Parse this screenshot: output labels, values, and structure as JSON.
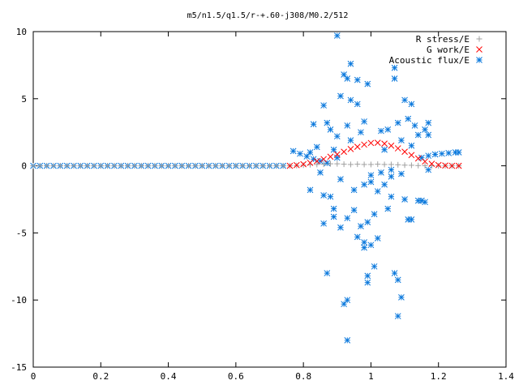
{
  "chart_data": {
    "type": "scatter",
    "title": "m5/n1.5/q1.5/r-+.60-j308/M0.2/512",
    "xlabel": "",
    "ylabel": "",
    "xlim": [
      0,
      1.4
    ],
    "ylim": [
      -15,
      10
    ],
    "x_ticks": [
      "0",
      "0.2",
      "0.4",
      "0.6",
      "0.8",
      "1",
      "1.2",
      "1.4"
    ],
    "y_ticks": [
      "-15",
      "-10",
      "-5",
      "0",
      "5",
      "10"
    ],
    "grid": false,
    "legend": "top-right",
    "series": [
      {
        "name": "R stress/E",
        "marker": "plus",
        "color": "#a0a0a0",
        "points": [
          [
            0.0,
            0
          ],
          [
            0.02,
            0
          ],
          [
            0.04,
            0
          ],
          [
            0.06,
            0
          ],
          [
            0.08,
            0
          ],
          [
            0.1,
            0
          ],
          [
            0.12,
            0
          ],
          [
            0.14,
            0
          ],
          [
            0.16,
            0
          ],
          [
            0.18,
            0
          ],
          [
            0.2,
            0
          ],
          [
            0.22,
            0
          ],
          [
            0.24,
            0
          ],
          [
            0.26,
            0
          ],
          [
            0.28,
            0
          ],
          [
            0.3,
            0
          ],
          [
            0.32,
            0
          ],
          [
            0.34,
            0
          ],
          [
            0.36,
            0
          ],
          [
            0.38,
            0
          ],
          [
            0.4,
            0
          ],
          [
            0.42,
            0
          ],
          [
            0.44,
            0
          ],
          [
            0.46,
            0
          ],
          [
            0.48,
            0
          ],
          [
            0.5,
            0
          ],
          [
            0.52,
            0
          ],
          [
            0.54,
            0
          ],
          [
            0.56,
            0
          ],
          [
            0.58,
            0
          ],
          [
            0.6,
            0
          ],
          [
            0.62,
            0
          ],
          [
            0.64,
            0
          ],
          [
            0.66,
            0
          ],
          [
            0.68,
            0
          ],
          [
            0.7,
            0
          ],
          [
            0.72,
            0
          ],
          [
            0.74,
            0
          ],
          [
            0.76,
            0
          ],
          [
            0.78,
            0.02
          ],
          [
            0.8,
            0.05
          ],
          [
            0.82,
            0.08
          ],
          [
            0.84,
            0.1
          ],
          [
            0.86,
            0.12
          ],
          [
            0.88,
            0.15
          ],
          [
            0.9,
            0.15
          ],
          [
            0.92,
            0.12
          ],
          [
            0.94,
            0.1
          ],
          [
            0.96,
            0.12
          ],
          [
            0.98,
            0.1
          ],
          [
            1.0,
            0.1
          ],
          [
            1.02,
            0.12
          ],
          [
            1.04,
            0.1
          ],
          [
            1.06,
            0.1
          ],
          [
            1.08,
            0.08
          ],
          [
            1.1,
            0.05
          ],
          [
            1.12,
            0.04
          ],
          [
            1.14,
            0.02
          ],
          [
            1.16,
            0.01
          ],
          [
            1.18,
            0
          ],
          [
            1.2,
            0
          ],
          [
            1.22,
            0
          ],
          [
            1.24,
            0
          ],
          [
            1.26,
            0
          ]
        ]
      },
      {
        "name": "G work/E",
        "marker": "cross",
        "color": "#ff0000",
        "points": [
          [
            0.76,
            0.0
          ],
          [
            0.78,
            0.05
          ],
          [
            0.8,
            0.12
          ],
          [
            0.82,
            0.22
          ],
          [
            0.84,
            0.35
          ],
          [
            0.86,
            0.5
          ],
          [
            0.88,
            0.68
          ],
          [
            0.9,
            0.85
          ],
          [
            0.92,
            1.05
          ],
          [
            0.94,
            1.25
          ],
          [
            0.96,
            1.42
          ],
          [
            0.98,
            1.58
          ],
          [
            1.0,
            1.7
          ],
          [
            1.02,
            1.72
          ],
          [
            1.04,
            1.65
          ],
          [
            1.06,
            1.5
          ],
          [
            1.08,
            1.3
          ],
          [
            1.1,
            1.05
          ],
          [
            1.12,
            0.8
          ],
          [
            1.14,
            0.55
          ],
          [
            1.16,
            0.32
          ],
          [
            1.18,
            0.15
          ],
          [
            1.2,
            0.06
          ],
          [
            1.22,
            0.02
          ],
          [
            1.24,
            0.0
          ],
          [
            1.26,
            0.0
          ]
        ]
      },
      {
        "name": "Acoustic flux/E",
        "marker": "star",
        "color": "#0a78dc",
        "points": [
          [
            0.0,
            0
          ],
          [
            0.02,
            0
          ],
          [
            0.04,
            0
          ],
          [
            0.06,
            0
          ],
          [
            0.08,
            0
          ],
          [
            0.1,
            0
          ],
          [
            0.12,
            0
          ],
          [
            0.14,
            0
          ],
          [
            0.16,
            0
          ],
          [
            0.18,
            0
          ],
          [
            0.2,
            0
          ],
          [
            0.22,
            0
          ],
          [
            0.24,
            0
          ],
          [
            0.26,
            0
          ],
          [
            0.28,
            0
          ],
          [
            0.3,
            0
          ],
          [
            0.32,
            0
          ],
          [
            0.34,
            0
          ],
          [
            0.36,
            0
          ],
          [
            0.38,
            0
          ],
          [
            0.4,
            0
          ],
          [
            0.42,
            0
          ],
          [
            0.44,
            0
          ],
          [
            0.46,
            0
          ],
          [
            0.48,
            0
          ],
          [
            0.5,
            0
          ],
          [
            0.52,
            0
          ],
          [
            0.54,
            0
          ],
          [
            0.56,
            0
          ],
          [
            0.58,
            0
          ],
          [
            0.6,
            0
          ],
          [
            0.62,
            0
          ],
          [
            0.64,
            0
          ],
          [
            0.66,
            0
          ],
          [
            0.68,
            0
          ],
          [
            0.7,
            0
          ],
          [
            0.72,
            0
          ],
          [
            0.74,
            0
          ],
          [
            0.77,
            1.1
          ],
          [
            0.79,
            0.9
          ],
          [
            0.81,
            0.7
          ],
          [
            0.83,
            0.5
          ],
          [
            0.85,
            0.35
          ],
          [
            0.87,
            0.2
          ],
          [
            1.15,
            0.6
          ],
          [
            1.17,
            0.75
          ],
          [
            1.19,
            0.85
          ],
          [
            1.21,
            0.9
          ],
          [
            1.23,
            0.95
          ],
          [
            1.25,
            1.0
          ],
          [
            1.26,
            1.0
          ],
          [
            0.82,
            -1.8
          ],
          [
            0.82,
            1.0
          ],
          [
            0.83,
            3.1
          ],
          [
            0.84,
            1.4
          ],
          [
            0.85,
            -0.5
          ],
          [
            0.86,
            4.5
          ],
          [
            0.86,
            -2.2
          ],
          [
            0.86,
            -4.3
          ],
          [
            0.87,
            -8.0
          ],
          [
            0.87,
            3.2
          ],
          [
            0.88,
            2.7
          ],
          [
            0.88,
            -2.3
          ],
          [
            0.89,
            -3.2
          ],
          [
            0.89,
            -3.8
          ],
          [
            0.89,
            1.2
          ],
          [
            0.9,
            9.7
          ],
          [
            0.9,
            2.2
          ],
          [
            0.9,
            0.6
          ],
          [
            0.91,
            -4.6
          ],
          [
            0.91,
            -1.0
          ],
          [
            0.91,
            5.2
          ],
          [
            0.92,
            -10.3
          ],
          [
            0.92,
            6.8
          ],
          [
            0.93,
            6.5
          ],
          [
            0.93,
            3.0
          ],
          [
            0.93,
            -13.0
          ],
          [
            0.93,
            -3.9
          ],
          [
            0.93,
            -10.0
          ],
          [
            0.94,
            7.6
          ],
          [
            0.94,
            4.9
          ],
          [
            0.94,
            1.9
          ],
          [
            0.95,
            -3.3
          ],
          [
            0.95,
            -1.8
          ],
          [
            0.96,
            6.4
          ],
          [
            0.96,
            4.6
          ],
          [
            0.96,
            -5.3
          ],
          [
            0.97,
            -4.5
          ],
          [
            0.97,
            2.5
          ],
          [
            0.98,
            -6.1
          ],
          [
            0.98,
            -5.7
          ],
          [
            0.98,
            -1.4
          ],
          [
            0.98,
            3.3
          ],
          [
            0.99,
            -8.2
          ],
          [
            0.99,
            6.1
          ],
          [
            0.99,
            -4.2
          ],
          [
            0.99,
            -8.7
          ],
          [
            1.0,
            -1.2
          ],
          [
            1.0,
            -0.7
          ],
          [
            1.0,
            -5.9
          ],
          [
            1.01,
            -7.5
          ],
          [
            1.01,
            -3.6
          ],
          [
            1.02,
            -5.4
          ],
          [
            1.02,
            -1.9
          ],
          [
            1.03,
            2.6
          ],
          [
            1.03,
            -0.5
          ],
          [
            1.04,
            1.2
          ],
          [
            1.04,
            -1.4
          ],
          [
            1.05,
            2.7
          ],
          [
            1.05,
            -3.2
          ],
          [
            1.06,
            -2.3
          ],
          [
            1.06,
            -0.8
          ],
          [
            1.06,
            -0.3
          ],
          [
            1.07,
            -8.0
          ],
          [
            1.07,
            7.3
          ],
          [
            1.07,
            6.5
          ],
          [
            1.08,
            -8.5
          ],
          [
            1.08,
            -11.2
          ],
          [
            1.08,
            3.2
          ],
          [
            1.09,
            -9.8
          ],
          [
            1.09,
            1.9
          ],
          [
            1.09,
            -0.6
          ],
          [
            1.1,
            4.9
          ],
          [
            1.1,
            -2.5
          ],
          [
            1.11,
            -4.0
          ],
          [
            1.11,
            3.5
          ],
          [
            1.12,
            4.6
          ],
          [
            1.12,
            -4.0
          ],
          [
            1.12,
            1.5
          ],
          [
            1.13,
            3.0
          ],
          [
            1.14,
            -2.6
          ],
          [
            1.14,
            2.3
          ],
          [
            1.15,
            -2.6
          ],
          [
            1.16,
            2.7
          ],
          [
            1.16,
            -2.7
          ],
          [
            1.17,
            3.2
          ],
          [
            1.17,
            2.3
          ],
          [
            1.17,
            -0.3
          ]
        ]
      }
    ]
  }
}
